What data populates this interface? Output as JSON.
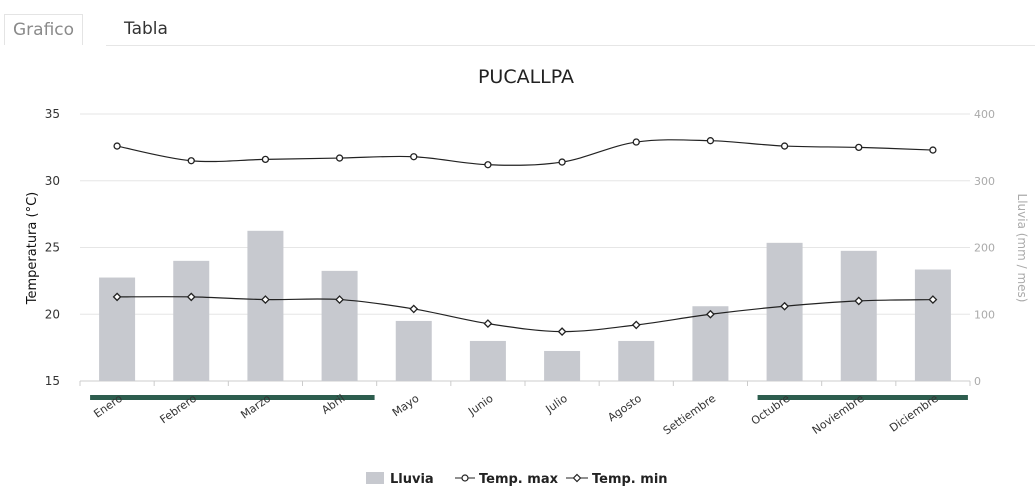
{
  "tabs": [
    {
      "label": "Grafico",
      "active": true
    },
    {
      "label": "Tabla",
      "active": false
    }
  ],
  "chart_data": {
    "type": "bar",
    "title": "PUCALLPA",
    "categories": [
      "Enero",
      "Febrero",
      "Marzo",
      "Abril",
      "Mayo",
      "Junio",
      "Julio",
      "Agosto",
      "Settiembre",
      "Octubre",
      "Noviembre",
      "Diciembre"
    ],
    "ylabel_left": "Temperatura (°C)",
    "ylabel_right": "Lluvia (mm / mes)",
    "ylim_left": [
      15,
      35
    ],
    "ylim_right": [
      0,
      400
    ],
    "ticks_left": [
      15,
      20,
      25,
      30,
      35
    ],
    "ticks_right": [
      0,
      100,
      200,
      300,
      400
    ],
    "grid": true,
    "legend_position": "bottom",
    "series": [
      {
        "name": "Lluvia",
        "kind": "bar",
        "axis": "right",
        "color": "#c7c9cf",
        "values": [
          155,
          180,
          225,
          165,
          90,
          60,
          45,
          60,
          112,
          207,
          195,
          167
        ]
      },
      {
        "name": "Temp. max",
        "kind": "line",
        "axis": "left",
        "marker": "open-circle",
        "color": "#222222",
        "values": [
          32.6,
          31.5,
          31.6,
          31.7,
          31.8,
          31.2,
          31.4,
          32.9,
          33.0,
          32.6,
          32.5,
          32.3
        ]
      },
      {
        "name": "Temp. min",
        "kind": "line",
        "axis": "left",
        "marker": "open-diamond",
        "color": "#222222",
        "values": [
          21.3,
          21.3,
          21.1,
          21.1,
          20.4,
          19.3,
          18.7,
          19.2,
          20.0,
          20.6,
          21.0,
          21.1
        ]
      }
    ],
    "season_bars": [
      {
        "from": 0,
        "to": 3,
        "color": "#2d5d4e"
      },
      {
        "from": 9,
        "to": 11,
        "color": "#2d5d4e"
      }
    ]
  }
}
